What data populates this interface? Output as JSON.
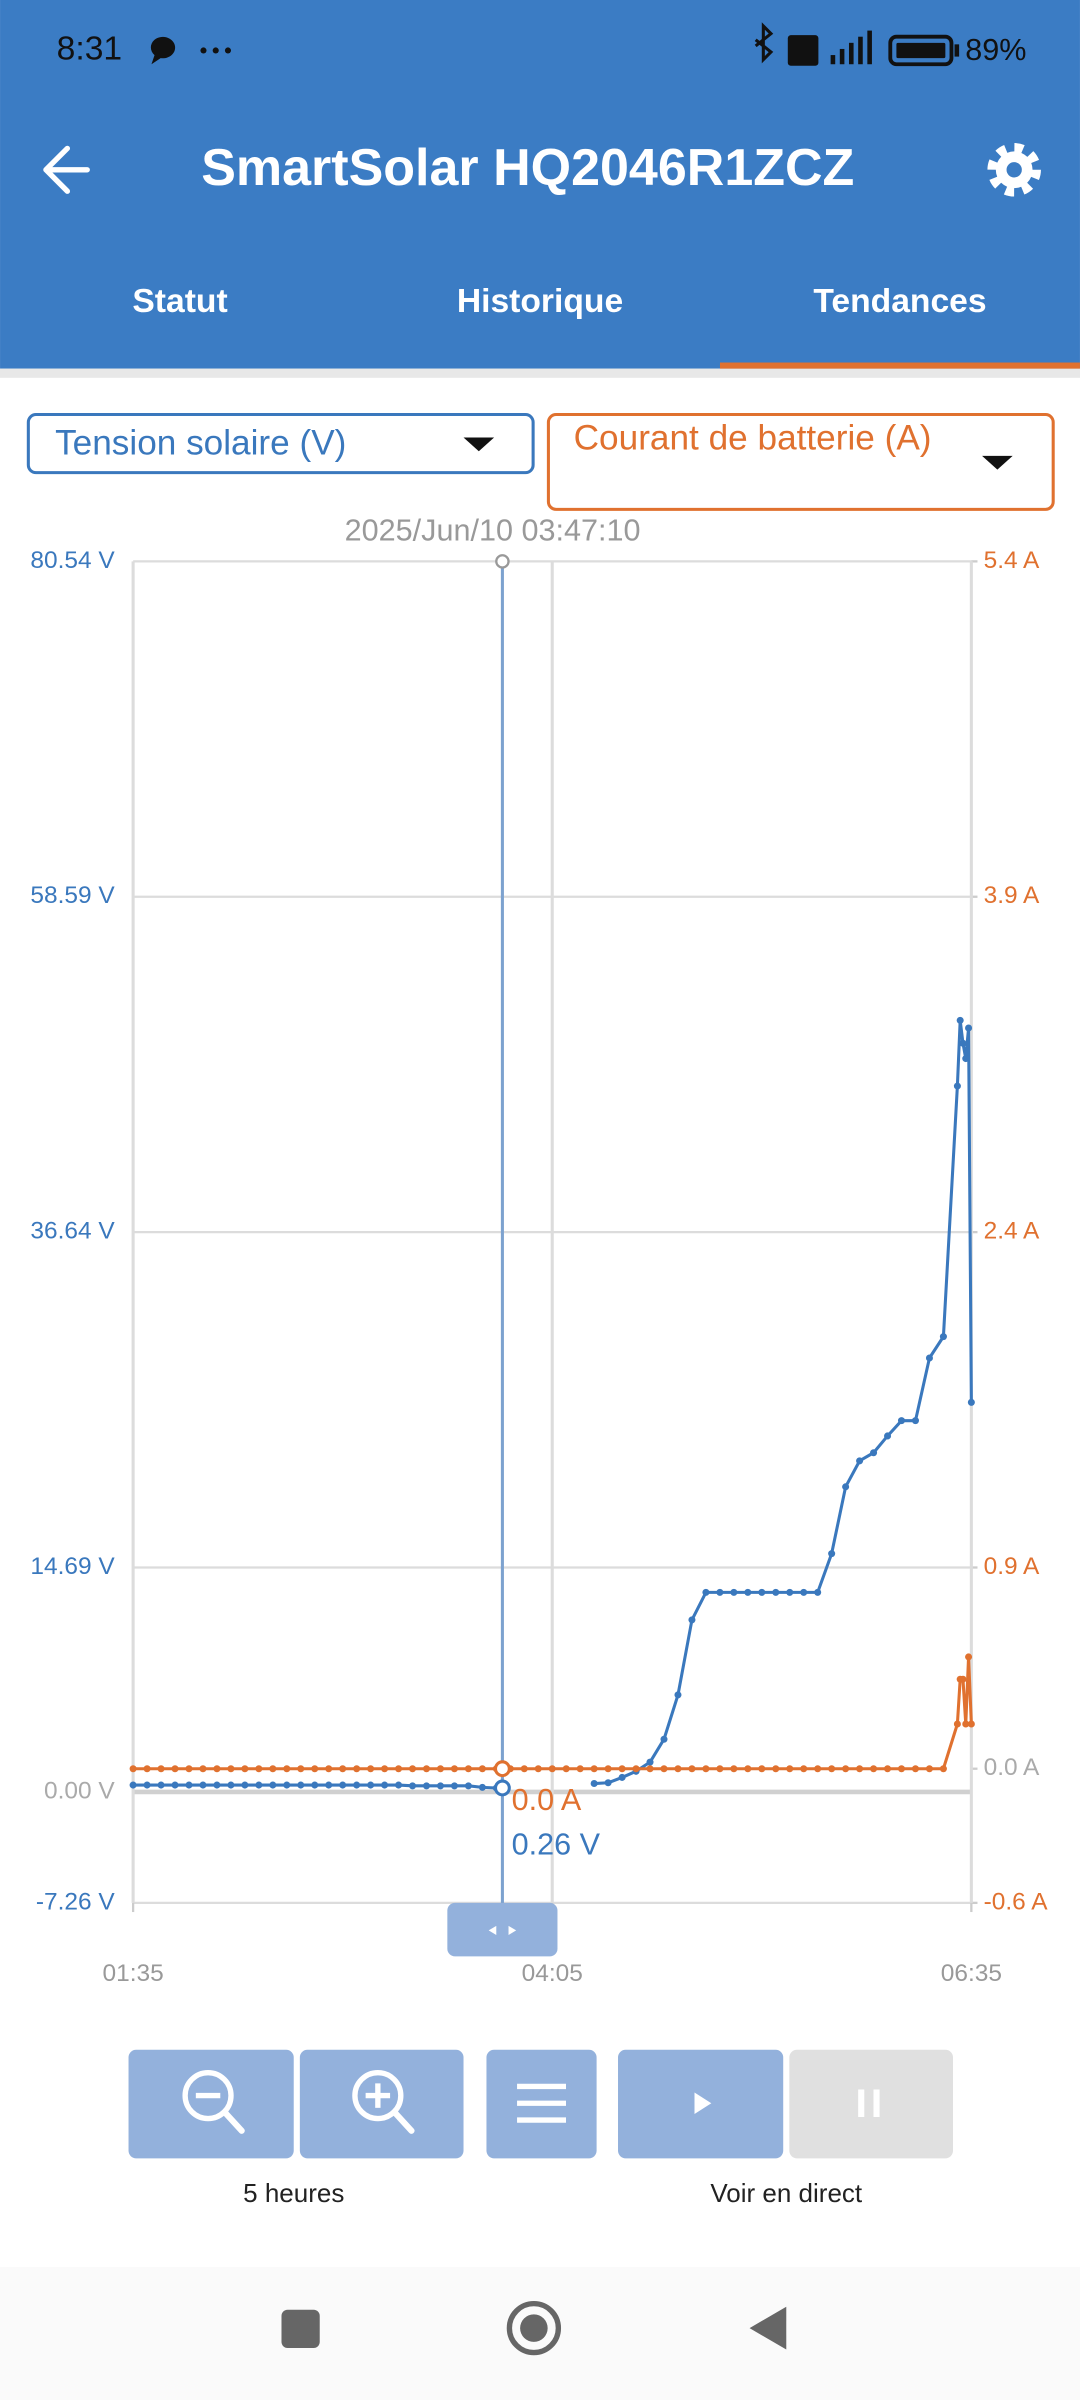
{
  "status_bar": {
    "time": "8:31",
    "battery": "89%"
  },
  "header": {
    "title": "SmartSolar HQ2046R1ZCZ"
  },
  "tabs": {
    "items": [
      "Statut",
      "Historique",
      "Tendances"
    ],
    "active": 2
  },
  "chart_data": {
    "type": "line",
    "x": [
      "01:35",
      "01:40",
      "01:45",
      "01:50",
      "01:55",
      "02:00",
      "02:05",
      "02:10",
      "02:15",
      "02:20",
      "02:25",
      "02:30",
      "02:35",
      "02:40",
      "02:45",
      "02:50",
      "02:55",
      "03:00",
      "03:05",
      "03:10",
      "03:15",
      "03:20",
      "03:25",
      "03:30",
      "03:35",
      "03:40",
      "03:45",
      "03:50",
      "03:55",
      "04:00",
      "04:05",
      "04:10",
      "04:15",
      "04:20",
      "04:25",
      "04:30",
      "04:35",
      "04:40",
      "04:45",
      "04:50",
      "04:55",
      "05:00",
      "05:05",
      "05:10",
      "05:15",
      "05:20",
      "05:25",
      "05:30",
      "05:35",
      "05:40",
      "05:45",
      "05:50",
      "05:55",
      "06:00",
      "06:05",
      "06:10",
      "06:15",
      "06:20",
      "06:25",
      "06:30",
      "06:31",
      "06:32",
      "06:33",
      "06:34",
      "06:35"
    ],
    "xlim": [
      "01:35",
      "06:35"
    ],
    "xticks": [
      "01:35",
      "04:05",
      "06:35"
    ],
    "ylim": [
      -7.26,
      80.54
    ],
    "yticks": [
      {
        "value": -7.26,
        "label": "-7.26 V"
      },
      {
        "value": 0,
        "label": "0.00 V"
      },
      {
        "value": 14.69,
        "label": "14.69 V"
      },
      {
        "value": 36.64,
        "label": "36.64 V"
      },
      {
        "value": 58.59,
        "label": "58.59 V"
      },
      {
        "value": 80.54,
        "label": "80.54 V"
      }
    ],
    "y2lim": [
      -0.6,
      5.4
    ],
    "y2ticks": [
      {
        "value": -0.6,
        "label": "-0.6 A"
      },
      {
        "value": 0,
        "label": "0.0 A"
      },
      {
        "value": 0.9,
        "label": "0.9 A"
      },
      {
        "value": 2.4,
        "label": "2.4 A"
      },
      {
        "value": 3.9,
        "label": "3.9 A"
      },
      {
        "value": 5.4,
        "label": "5.4 A"
      }
    ],
    "grid": true,
    "series": [
      {
        "name": "Tension solaire (V)",
        "color": "#3a78bd",
        "values": [
          0.45,
          0.45,
          0.45,
          0.45,
          0.45,
          0.45,
          0.45,
          0.45,
          0.45,
          0.45,
          0.45,
          0.45,
          0.45,
          0.45,
          0.45,
          0.45,
          0.45,
          0.45,
          0.45,
          0.45,
          0.4,
          0.4,
          0.4,
          0.4,
          0.4,
          0.3,
          0.26,
          null,
          null,
          null,
          null,
          null,
          null,
          0.55,
          0.6,
          0.95,
          1.35,
          1.95,
          3.45,
          6.35,
          11.26,
          13.06,
          13.06,
          13.06,
          13.06,
          13.06,
          13.06,
          13.06,
          13.06,
          13.06,
          15.6,
          19.97,
          21.67,
          22.2,
          23.3,
          24.3,
          24.3,
          28.4,
          29.8,
          46.2,
          50.5,
          49.0,
          48.0,
          50.0,
          25.5
        ]
      },
      {
        "name": "Courant de batterie (A)",
        "color": "#e0712f",
        "axis": "y2",
        "values": [
          0,
          0,
          0,
          0,
          0,
          0,
          0,
          0,
          0,
          0,
          0,
          0,
          0,
          0,
          0,
          0,
          0,
          0,
          0,
          0,
          0,
          0,
          0,
          0,
          0,
          0,
          0,
          0,
          0,
          0,
          0,
          0,
          0,
          0,
          0,
          0,
          0,
          0,
          0,
          0,
          0,
          0,
          0,
          0,
          0,
          0,
          0,
          0,
          0,
          0,
          0,
          0,
          0,
          0,
          0,
          0,
          0,
          0,
          0,
          0.2,
          0.4,
          0.4,
          0.2,
          0.5,
          0.2
        ]
      }
    ],
    "cursor": {
      "label": "2025/Jun/10 03:47:10",
      "voltage": 0.26,
      "voltage_label": "0.26 V",
      "current": 0,
      "current_label": "0.0 A"
    }
  },
  "controls": {
    "zoom_label": "5 heures",
    "live_label": "Voir en direct"
  }
}
